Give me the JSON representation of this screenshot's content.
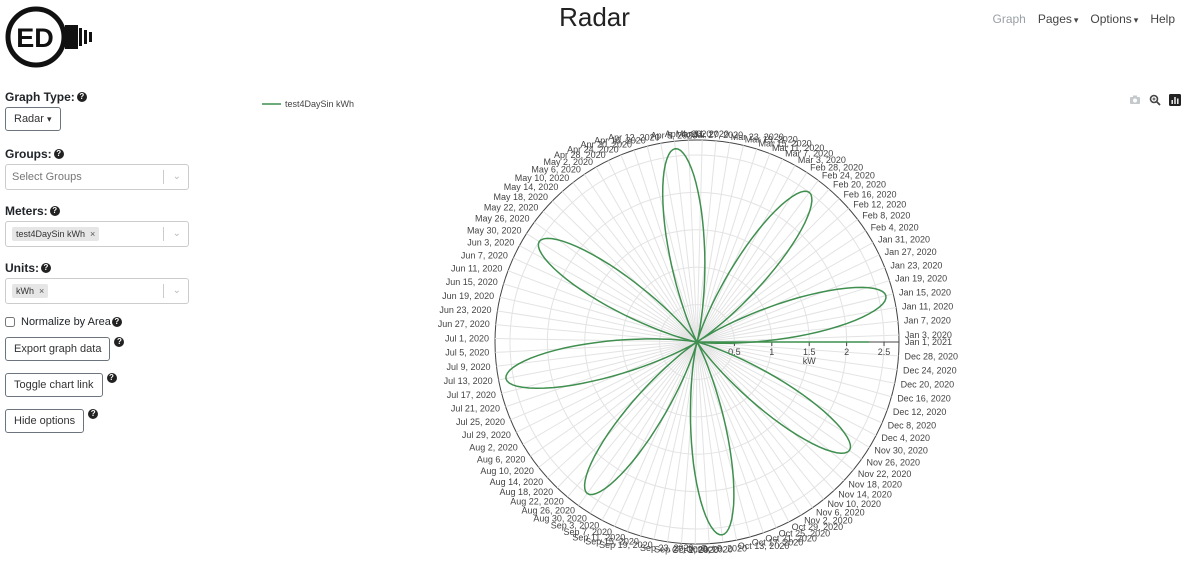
{
  "logo": {
    "text": "ED"
  },
  "header": {
    "title": "Radar"
  },
  "nav": {
    "graph": "Graph",
    "pages": "Pages",
    "options": "Options",
    "help": "Help"
  },
  "sidebar": {
    "graph_type_label": "Graph Type:",
    "graph_type_value": "Radar",
    "groups_label": "Groups:",
    "groups_placeholder": "Select Groups",
    "meters_label": "Meters:",
    "meters_chip": "test4DaySin kWh",
    "units_label": "Units:",
    "units_chip": "kWh",
    "normalize_label": "Normalize by Area",
    "export_label": "Export graph data",
    "toggle_label": "Toggle chart link",
    "hide_label": "Hide options"
  },
  "toolbar_icons": [
    "camera-icon",
    "zoom-icon",
    "plotly-logo-icon"
  ],
  "chart_data": {
    "type": "line",
    "subtype": "polar",
    "series": [
      {
        "name": "test4DaySin kWh",
        "color": "#3f8f4f"
      }
    ],
    "radial_axis": {
      "title": "kW",
      "ticks": [
        "0.5",
        "1",
        "1.5",
        "2",
        "2.5"
      ],
      "range": [
        0,
        2.7
      ]
    },
    "angular_labels": [
      "Jan 1, 2021",
      "Jan 3, 2020",
      "Jan 7, 2020",
      "Jan 11, 2020",
      "Jan 15, 2020",
      "Jan 19, 2020",
      "Jan 23, 2020",
      "Jan 27, 2020",
      "Jan 31, 2020",
      "Feb 4, 2020",
      "Feb 8, 2020",
      "Feb 12, 2020",
      "Feb 16, 2020",
      "Feb 20, 2020",
      "Feb 24, 2020",
      "Feb 28, 2020",
      "Mar 3, 2020",
      "Mar 7, 2020",
      "Mar 11, 2020",
      "Mar 15, 2020",
      "Mar 19, 2020",
      "Mar 23, 2020",
      "Mar 27, 2020",
      "Mar 31, 2020",
      "Apr 4, 2020",
      "Apr 8, 2020",
      "Apr 12, 2020",
      "Apr 16, 2020",
      "Apr 20, 2020",
      "Apr 24, 2020",
      "Apr 28, 2020",
      "May 2, 2020",
      "May 6, 2020",
      "May 10, 2020",
      "May 14, 2020",
      "May 18, 2020",
      "May 22, 2020",
      "May 26, 2020",
      "May 30, 2020",
      "Jun 3, 2020",
      "Jun 7, 2020",
      "Jun 11, 2020",
      "Jun 15, 2020",
      "Jun 19, 2020",
      "Jun 23, 2020",
      "Jun 27, 2020",
      "Jul 1, 2020",
      "Jul 5, 2020",
      "Jul 9, 2020",
      "Jul 13, 2020",
      "Jul 17, 2020",
      "Jul 21, 2020",
      "Jul 25, 2020",
      "Jul 29, 2020",
      "Aug 2, 2020",
      "Aug 6, 2020",
      "Aug 10, 2020",
      "Aug 14, 2020",
      "Aug 18, 2020",
      "Aug 22, 2020",
      "Aug 26, 2020",
      "Aug 30, 2020",
      "Sep 3, 2020",
      "Sep 7, 2020",
      "Sep 11, 2020",
      "Sep 15, 2020",
      "Sep 19, 2020",
      "Sep 23, 2020",
      "Sep 27, 2020",
      "Oct 1, 2020",
      "Oct 5, 2020",
      "Oct 9, 2020",
      "Oct 13, 2020",
      "Oct 17, 2020",
      "Oct 21, 2020",
      "Oct 25, 2020",
      "Oct 29, 2020",
      "Nov 2, 2020",
      "Nov 6, 2020",
      "Nov 10, 2020",
      "Nov 14, 2020",
      "Nov 18, 2020",
      "Nov 22, 2020",
      "Nov 26, 2020",
      "Nov 30, 2020",
      "Dec 4, 2020",
      "Dec 8, 2020",
      "Dec 12, 2020",
      "Dec 16, 2020",
      "Dec 20, 2020",
      "Dec 24, 2020",
      "Dec 28, 2020"
    ],
    "petals": [
      {
        "peak_date": "Jan 15, 2020",
        "peak_kw": 2.6
      },
      {
        "peak_date": "Feb 24, 2020",
        "peak_kw": 2.5
      },
      {
        "peak_date": "Apr 8, 2020",
        "peak_kw": 2.6
      },
      {
        "peak_date": "May 30, 2020",
        "peak_kw": 2.5
      },
      {
        "peak_date": "Jul 13, 2020",
        "peak_kw": 2.6
      },
      {
        "peak_date": "Aug 26, 2020",
        "peak_kw": 2.5
      },
      {
        "peak_date": "Oct 9, 2020",
        "peak_kw": 2.6
      },
      {
        "peak_date": "Nov 26, 2020",
        "peak_kw": 2.5
      }
    ],
    "end_value": {
      "date": "Jan 1, 2021",
      "kw": 2.3
    },
    "legend_position": "top-left"
  }
}
